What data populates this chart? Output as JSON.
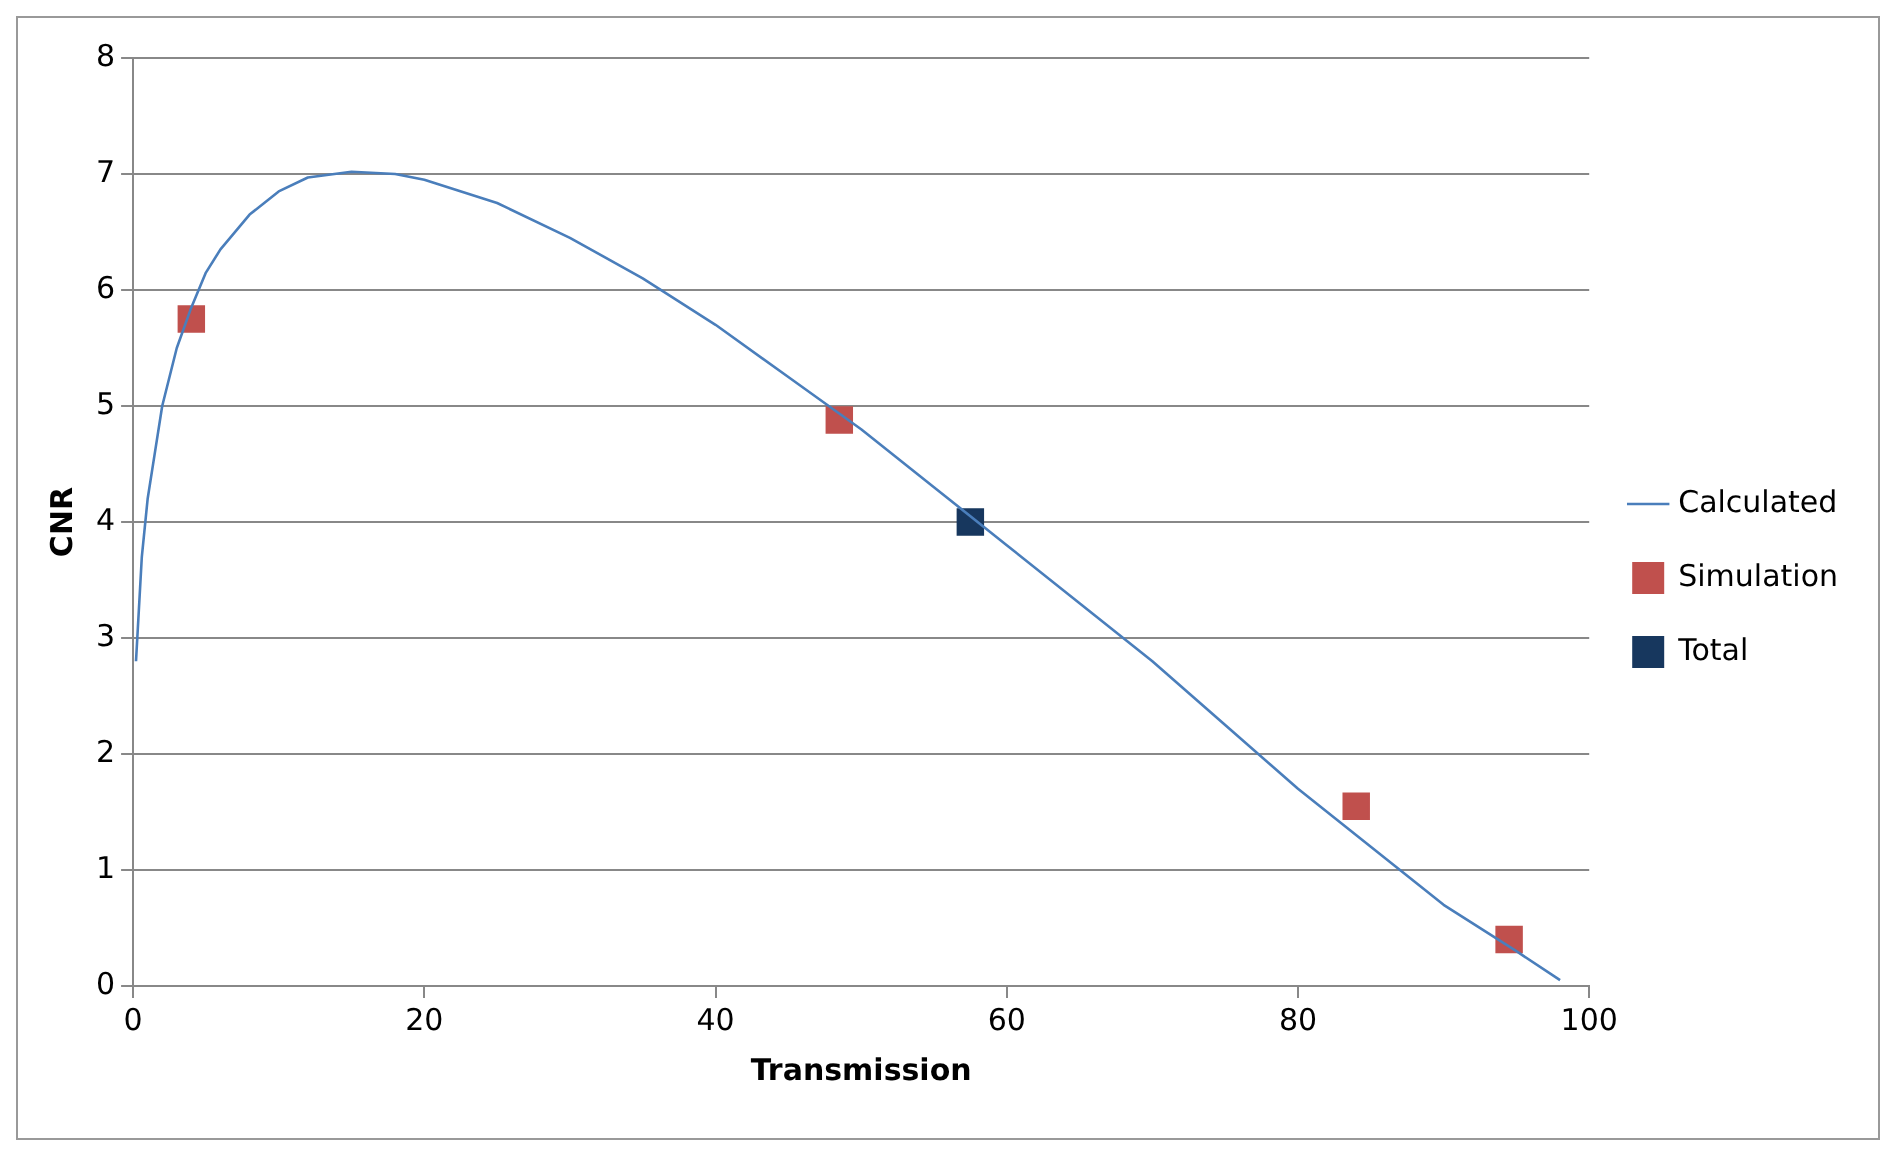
{
  "chart_data": {
    "type": "line",
    "xlabel": "Transmission",
    "ylabel": "CNR",
    "xlim": [
      0,
      100
    ],
    "xticks": [
      0,
      20,
      40,
      60,
      80,
      100
    ],
    "ylim": [
      0,
      8
    ],
    "yticks": [
      0,
      1,
      2,
      3,
      4,
      5,
      6,
      7,
      8
    ],
    "grid": "y",
    "legend": "right",
    "series": [
      {
        "name": "Calculated",
        "type": "line",
        "color": "#4a7ebb",
        "marker": "none",
        "x": [
          0.2,
          0.6,
          1,
          1.5,
          2,
          3,
          4,
          5,
          6,
          8,
          10,
          12,
          15,
          18,
          20,
          25,
          30,
          35,
          40,
          45,
          50,
          55,
          60,
          65,
          70,
          75,
          80,
          85,
          90,
          95,
          98
        ],
        "values": [
          2.8,
          3.7,
          4.2,
          4.6,
          5.0,
          5.5,
          5.85,
          6.15,
          6.35,
          6.65,
          6.85,
          6.97,
          7.02,
          7.0,
          6.95,
          6.75,
          6.45,
          6.1,
          5.7,
          5.25,
          4.8,
          4.3,
          3.8,
          3.3,
          2.8,
          2.25,
          1.7,
          1.2,
          0.7,
          0.3,
          0.05
        ]
      },
      {
        "name": "Simulation",
        "type": "scatter",
        "color": "#c0504d",
        "marker": "square",
        "x": [
          4,
          48.5,
          84,
          94.5
        ],
        "values": [
          5.75,
          4.88,
          1.55,
          0.4
        ]
      },
      {
        "name": "Total",
        "type": "scatter",
        "color": "#17375e",
        "marker": "square",
        "x": [
          57.5
        ],
        "values": [
          4.0
        ]
      }
    ]
  }
}
